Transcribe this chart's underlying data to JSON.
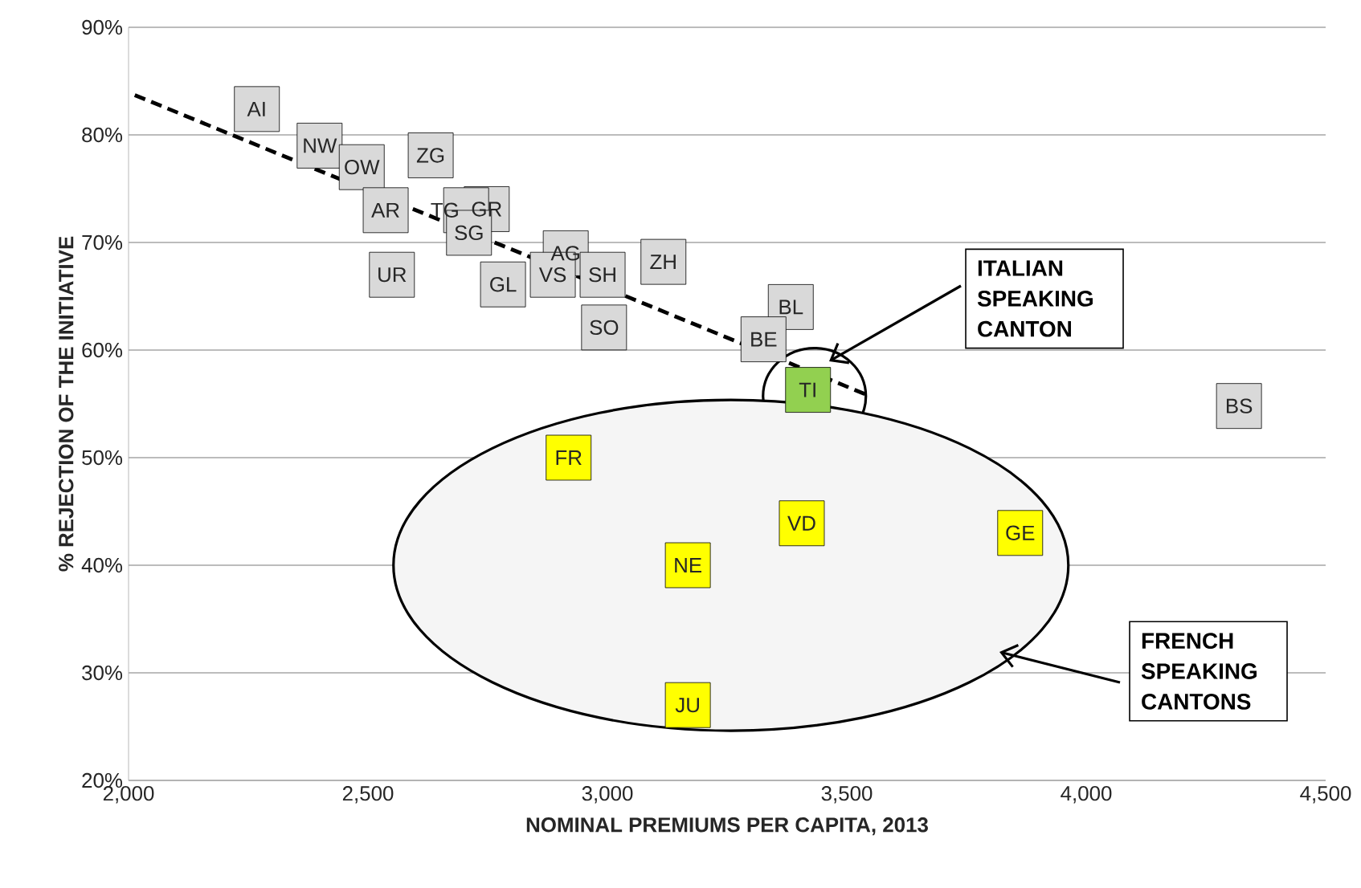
{
  "chart_data": {
    "type": "scatter",
    "xlabel": "NOMINAL PREMIUMS PER CAPITA, 2013",
    "ylabel": "% REJECTION OF THE INITIATIVE",
    "xlim": [
      2000,
      4500
    ],
    "xticks": [
      {
        "value": 2000,
        "label": "2,000"
      },
      {
        "value": 2500,
        "label": "2,500"
      },
      {
        "value": 3000,
        "label": "3,000"
      },
      {
        "value": 3500,
        "label": "3,500"
      },
      {
        "value": 4000,
        "label": "4,000"
      },
      {
        "value": 4500,
        "label": "4,500"
      }
    ],
    "ylim": [
      20,
      90
    ],
    "yticks": [
      {
        "value": 20,
        "label": "20%"
      },
      {
        "value": 30,
        "label": "30%"
      },
      {
        "value": 40,
        "label": "40%"
      },
      {
        "value": 50,
        "label": "50%"
      },
      {
        "value": 60,
        "label": "60%"
      },
      {
        "value": 70,
        "label": "70%"
      },
      {
        "value": 80,
        "label": "80%"
      },
      {
        "value": 90,
        "label": "90%"
      }
    ],
    "grid": "y",
    "marker": "square",
    "series": [
      {
        "color": "#d9d9d9",
        "x": [
          2268,
          2399,
          2487,
          2631,
          2748,
          2705,
          2537,
          2711,
          2550,
          2913,
          2886,
          2990,
          2782,
          3117,
          2993,
          3383,
          3326,
          4319
        ],
        "values": [
          82.4,
          79.0,
          77.0,
          78.1,
          73.1,
          73.0,
          73.0,
          70.9,
          67.0,
          69.0,
          67.0,
          67.0,
          66.1,
          68.2,
          62.1,
          64.0,
          61.0,
          54.8
        ],
        "value_labels": [
          "AI",
          "NW",
          "OW",
          "ZG",
          "GR",
          "TG",
          "AR",
          "SG",
          "UR",
          "AG",
          "VS",
          "SH",
          "GL",
          "ZH",
          "SO",
          "BL",
          "BE",
          "BS"
        ]
      },
      {
        "color": "#ffff00",
        "x": [
          2919,
          3168,
          3406,
          3862,
          3168
        ],
        "values": [
          50.0,
          40.0,
          43.9,
          43.0,
          27.0
        ],
        "value_labels": [
          "FR",
          "NE",
          "VD",
          "GE",
          "JU"
        ]
      },
      {
        "color": "#92d050",
        "x": [
          3419
        ],
        "values": [
          56.3
        ],
        "value_labels": [
          "TI"
        ]
      },
      {
        "type": "line",
        "color": "#000000",
        "line_style": "dashed",
        "marker": "none",
        "x": [
          2013,
          3544
        ],
        "values": [
          83.7,
          55.8
        ]
      }
    ],
    "annotations": [
      "ITALIAN SPEAKING CANTON",
      "FRENCH SPEAKING CANTONS"
    ]
  }
}
